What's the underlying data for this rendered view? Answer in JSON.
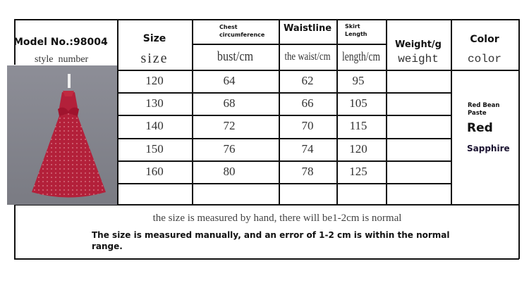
{
  "header": {
    "model_label": "Model No.:98004",
    "model_sub": "style  number",
    "size_label": "Size",
    "size_sub": "size",
    "chest_label": "Chest circumference",
    "chest_sub": "bust/cm",
    "waist_label": "Waistline",
    "waist_sub": "the waist/cm",
    "skirt_label": "Skirt Length",
    "skirt_sub": "length/cm",
    "weight_label": "Weight/g",
    "weight_sub": "weight",
    "color_label": "Color",
    "color_sub": "color"
  },
  "rows": [
    {
      "size": "120",
      "chest": "64",
      "waist": "62",
      "skirt": "95",
      "weight": ""
    },
    {
      "size": "130",
      "chest": "68",
      "waist": "66",
      "skirt": "105",
      "weight": ""
    },
    {
      "size": "140",
      "chest": "72",
      "waist": "70",
      "skirt": "115",
      "weight": ""
    },
    {
      "size": "150",
      "chest": "76",
      "waist": "74",
      "skirt": "120",
      "weight": ""
    },
    {
      "size": "160",
      "chest": "80",
      "waist": "78",
      "skirt": "125",
      "weight": ""
    }
  ],
  "colors": [
    "Red Bean Paste",
    "Red",
    "Sapphire"
  ],
  "notes": {
    "line1": "the size is measured by hand, there will be1-2cm is normal",
    "line2": "The size is measured manually, and an error of 1-2 cm is within the normal range."
  },
  "image": {
    "subject": "red-tulle-dress",
    "dress_color": "#b3203a",
    "background_color": "#8a8b93"
  }
}
